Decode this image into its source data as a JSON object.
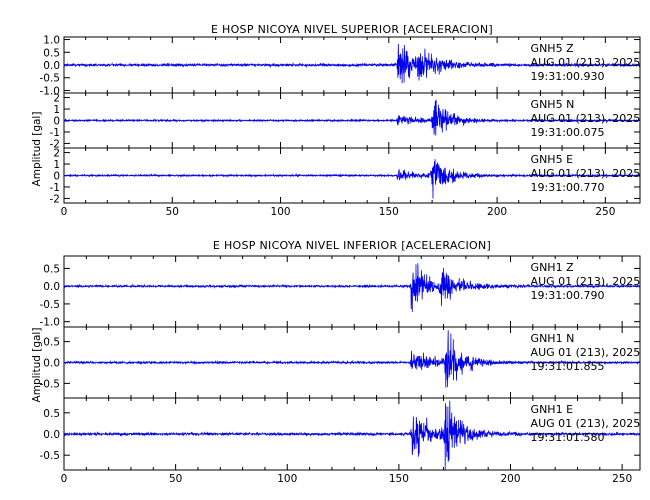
{
  "chart_data": [
    {
      "type": "line",
      "title": "E HOSP NICOYA NIVEL SUPERIOR [ACELERACION]",
      "ylabel": "Amplitud [gal]",
      "xlim": [
        0,
        266
      ],
      "xticks": [
        "0",
        "50",
        "100",
        "150",
        "200",
        "250"
      ],
      "line_color": "#0000ee",
      "series": [
        {
          "name": "GNH5 Z",
          "station": "GNH5",
          "component": "Z",
          "date_line": "AUG 01 (213), 2025",
          "time_line": "19:31:00.930",
          "ylim": [
            -1.1,
            1.1
          ],
          "yticks": [
            "1.0",
            "0.5",
            "0.0",
            "-0.5",
            "-1.0"
          ],
          "noise_amplitude": 0.05,
          "events": [
            {
              "onset": 153.5,
              "peak": 1.05,
              "decay": 8
            },
            {
              "onset": 163,
              "peak": 0.45,
              "decay": 10
            }
          ]
        },
        {
          "name": "GNH5 N",
          "station": "GNH5",
          "component": "N",
          "date_line": "AUG 01 (213), 2025",
          "time_line": "19:31:00.075",
          "ylim": [
            -2.4,
            2.4
          ],
          "yticks": [
            "2",
            "1",
            "0",
            "-1",
            "-2"
          ],
          "noise_amplitude": 0.07,
          "events": [
            {
              "onset": 153.5,
              "peak": 0.55,
              "decay": 10
            },
            {
              "onset": 169.5,
              "peak": 2.2,
              "decay": 7
            }
          ]
        },
        {
          "name": "GNH5 E",
          "station": "GNH5",
          "component": "E",
          "date_line": "AUG 01 (213), 2025",
          "time_line": "19:31:00.770",
          "ylim": [
            -2.4,
            2.4
          ],
          "yticks": [
            "2",
            "1",
            "0",
            "-1",
            "-2"
          ],
          "noise_amplitude": 0.07,
          "events": [
            {
              "onset": 153.5,
              "peak": 0.6,
              "decay": 10
            },
            {
              "onset": 169,
              "peak": 2.0,
              "decay": 7
            }
          ]
        }
      ]
    },
    {
      "type": "line",
      "title": "E HOSP NICOYA NIVEL INFERIOR [ACELERACION]",
      "ylabel": "Amplitud [gal]",
      "xlim": [
        0,
        258
      ],
      "xticks": [
        "0",
        "50",
        "100",
        "150",
        "200",
        "250"
      ],
      "line_color": "#0000ee",
      "series": [
        {
          "name": "GNH1 Z",
          "station": "GNH1",
          "component": "Z",
          "date_line": "AUG 01 (213), 2025",
          "time_line": "19:31:00.790",
          "ylim": [
            -1.15,
            0.85
          ],
          "yticks": [
            "0.5",
            "0.0",
            "-0.5",
            "-1.0"
          ],
          "noise_amplitude": 0.03,
          "events": [
            {
              "onset": 155,
              "peak": 0.9,
              "decay": 7
            },
            {
              "onset": 168,
              "peak": 0.4,
              "decay": 9
            }
          ]
        },
        {
          "name": "GNH1 N",
          "station": "GNH1",
          "component": "N",
          "date_line": "AUG 01 (213), 2025",
          "time_line": "19:31:01.855",
          "ylim": [
            -0.85,
            0.85
          ],
          "yticks": [
            "0.5",
            "0.0",
            "-0.5"
          ],
          "noise_amplitude": 0.025,
          "events": [
            {
              "onset": 155,
              "peak": 0.3,
              "decay": 10
            },
            {
              "onset": 170,
              "peak": 0.8,
              "decay": 7
            }
          ]
        },
        {
          "name": "GNH1 E",
          "station": "GNH1",
          "component": "E",
          "date_line": "AUG 01 (213), 2025",
          "time_line": "19:31:01.580",
          "ylim": [
            -0.85,
            0.85
          ],
          "yticks": [
            "0.5",
            "0.0",
            "-0.5"
          ],
          "noise_amplitude": 0.03,
          "events": [
            {
              "onset": 155,
              "peak": 0.7,
              "decay": 8
            },
            {
              "onset": 170,
              "peak": 0.9,
              "decay": 7
            }
          ]
        }
      ]
    }
  ]
}
